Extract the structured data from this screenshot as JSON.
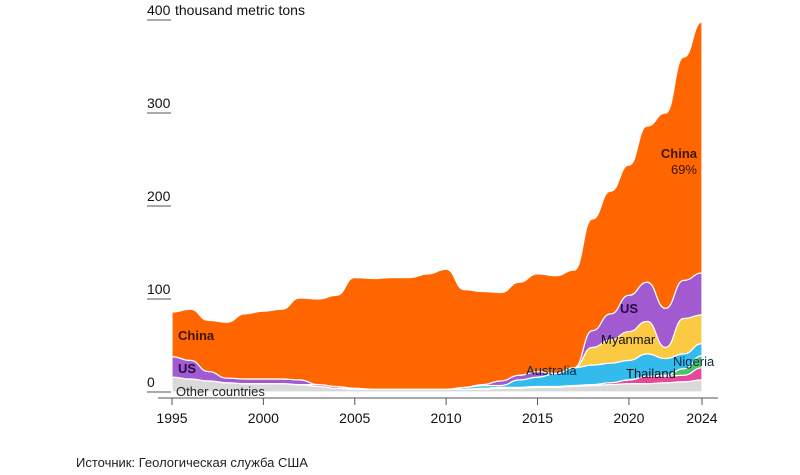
{
  "chart_data": {
    "type": "area",
    "stacked": true,
    "title": "",
    "ylabel_unit": "thousand metric tons",
    "xlim": [
      1995,
      2024
    ],
    "ylim": [
      0,
      400
    ],
    "y_ticks": [
      "0",
      "100",
      "200",
      "300",
      "400"
    ],
    "x_ticks": [
      "1995",
      "2000",
      "2005",
      "2010",
      "2015",
      "2020",
      "2024"
    ],
    "grid": false,
    "x": [
      1995,
      1996,
      1997,
      1998,
      1999,
      2000,
      2001,
      2002,
      2003,
      2004,
      2005,
      2006,
      2007,
      2008,
      2009,
      2010,
      2011,
      2012,
      2013,
      2014,
      2015,
      2016,
      2017,
      2018,
      2019,
      2020,
      2021,
      2022,
      2023,
      2024
    ],
    "series": [
      {
        "name": "Other countries",
        "color": "#d9d9d9",
        "values": [
          16,
          14,
          12,
          10,
          9,
          9,
          9,
          8,
          6,
          4,
          3,
          3,
          3,
          3,
          3,
          3,
          3,
          3,
          4,
          4,
          5,
          5,
          6,
          7,
          8,
          9,
          9,
          10,
          11,
          13
        ]
      },
      {
        "name": "Thailand",
        "color": "#e8489a",
        "values": [
          0,
          0,
          0,
          0,
          0,
          0,
          0,
          0,
          2,
          2,
          1,
          0,
          0,
          0,
          0,
          0,
          0,
          1,
          1,
          1,
          1,
          1,
          1,
          1,
          2,
          4,
          8,
          7,
          7,
          13
        ]
      },
      {
        "name": "Nigeria",
        "color": "#4cc46a",
        "values": [
          0,
          0,
          0,
          0,
          0,
          0,
          0,
          0,
          0,
          0,
          0,
          0,
          0,
          0,
          0,
          0,
          0,
          0,
          0,
          0,
          0,
          0,
          0,
          0,
          0,
          0,
          0,
          1,
          7,
          13
        ]
      },
      {
        "name": "Australia",
        "color": "#33bbee",
        "values": [
          0,
          0,
          0,
          0,
          0,
          0,
          0,
          0,
          0,
          0,
          0,
          0,
          0,
          0,
          0,
          0,
          2,
          3,
          2,
          8,
          10,
          14,
          19,
          21,
          21,
          21,
          24,
          18,
          16,
          13
        ]
      },
      {
        "name": "Myanmar",
        "color": "#fbc942",
        "values": [
          0,
          0,
          0,
          0,
          0,
          0,
          0,
          0,
          0,
          0,
          0,
          0,
          0,
          0,
          0,
          0,
          0,
          0,
          0,
          0,
          0,
          0,
          0,
          19,
          25,
          31,
          35,
          12,
          38,
          31
        ]
      },
      {
        "name": "US",
        "color": "#a25ad0",
        "values": [
          22,
          20,
          10,
          5,
          5,
          5,
          5,
          5,
          0,
          0,
          0,
          0,
          0,
          0,
          0,
          0,
          0,
          1,
          5,
          5,
          6,
          0,
          0,
          18,
          28,
          39,
          42,
          42,
          41,
          45
        ]
      },
      {
        "name": "China",
        "color": "#ff6600",
        "values": [
          48,
          55,
          55,
          60,
          70,
          73,
          75,
          88,
          92,
          98,
          119,
          119,
          120,
          120,
          124,
          129,
          105,
          100,
          95,
          100,
          105,
          105,
          105,
          120,
          132,
          140,
          168,
          210,
          240,
          270
        ]
      }
    ],
    "annotations": {
      "china_share": "69%"
    }
  },
  "source": "Источник: Геологическая служба США"
}
